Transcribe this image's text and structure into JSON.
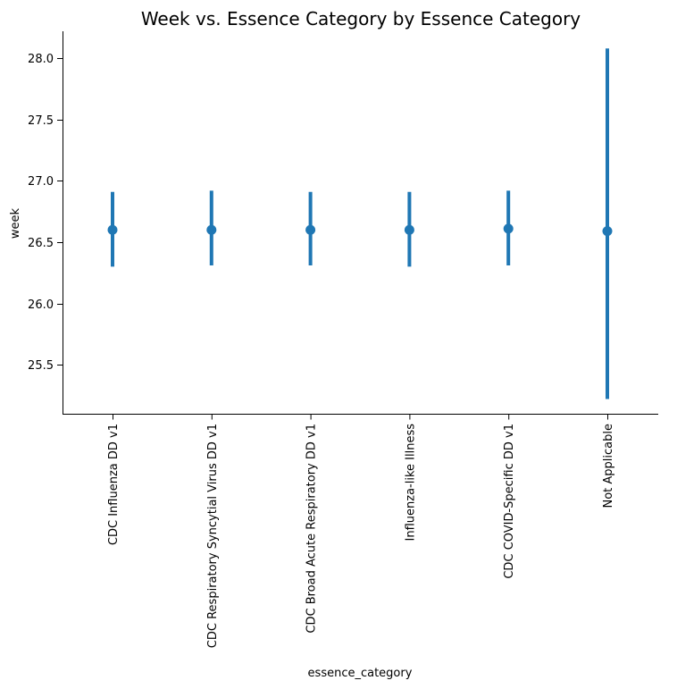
{
  "chart_data": {
    "type": "pointplot",
    "title": "Week vs. Essence Category by Essence Category",
    "xlabel": "essence_category",
    "ylabel": "week",
    "categories": [
      "CDC Influenza DD v1",
      "CDC Respiratory Syncytial Virus DD v1",
      "CDC Broad Acute Respiratory DD v1",
      "Influenza-like Illness",
      "CDC COVID-Specific DD v1",
      "Not Applicable"
    ],
    "values": [
      26.6,
      26.6,
      26.6,
      26.6,
      26.61,
      26.59
    ],
    "error_low": [
      26.3,
      26.31,
      26.31,
      26.3,
      26.31,
      25.22
    ],
    "error_high": [
      26.91,
      26.92,
      26.91,
      26.91,
      26.92,
      28.08
    ],
    "yticks": [
      25.5,
      26.0,
      26.5,
      27.0,
      27.5,
      28.0
    ],
    "ylim": [
      25.1,
      28.22
    ],
    "color": "#1f77b4",
    "grid": false,
    "spines": "left-bottom"
  }
}
